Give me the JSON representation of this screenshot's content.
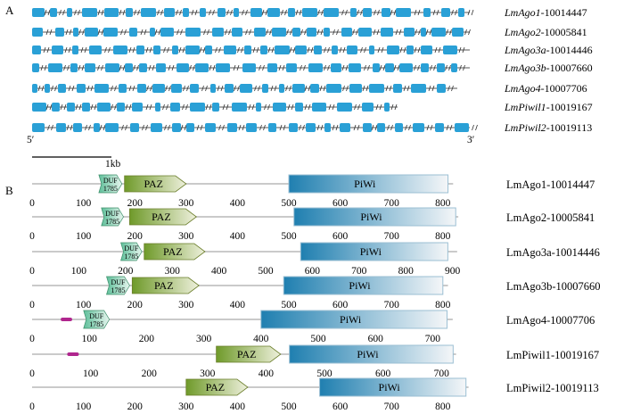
{
  "panel_a": {
    "letter": "A",
    "five_prime": "5′",
    "three_prime": "3′",
    "scale_label": "1kb",
    "exon_color": "#2aa0d6",
    "genes": [
      {
        "label_italic": "LmAgo1",
        "label_rest": "-10014447"
      },
      {
        "label_italic": "LmAgo2",
        "label_rest": "-10005841"
      },
      {
        "label_italic": "LmAgo3a",
        "label_rest": "-10014446"
      },
      {
        "label_italic": "LmAgo3b",
        "label_rest": "-10007660"
      },
      {
        "label_italic": "LmAgo4",
        "label_rest": "-10007706"
      },
      {
        "label_italic": "LmPiwil1",
        "label_rest": "-10019167"
      },
      {
        "label_italic": "LmPiwil2",
        "label_rest": "-10019113"
      }
    ]
  },
  "panel_b": {
    "letter": "B",
    "colors": {
      "duf": "#5fbf9a",
      "paz": "#6f9a2a",
      "piwi": "#1f7fb0",
      "backbone": "#b8b8b8",
      "magenta": "#b0268e"
    },
    "domain_names": {
      "duf": "DUF 1785",
      "paz": "PAZ",
      "piwi": "PiWi"
    },
    "proteins": [
      {
        "name": "LmAgo1-10014447",
        "length": 820,
        "duf": [
          130,
          175
        ],
        "paz": [
          180,
          300
        ],
        "piwi": [
          500,
          810
        ],
        "ticks": [
          "0",
          "100",
          "200",
          "300",
          "400",
          "500",
          "600",
          "700",
          "800"
        ]
      },
      {
        "name": "LmAgo2-10005841",
        "length": 830,
        "duf": [
          135,
          178
        ],
        "paz": [
          190,
          320
        ],
        "piwi": [
          510,
          825
        ],
        "ticks": [
          "0",
          "100",
          "200",
          "300",
          "400",
          "500",
          "600",
          "700",
          "800"
        ]
      },
      {
        "name": "LmAgo3a-10014446",
        "length": 910,
        "duf": [
          190,
          235
        ],
        "paz": [
          240,
          370
        ],
        "piwi": [
          575,
          890
        ],
        "ticks": [
          "0",
          "100",
          "200",
          "300",
          "400",
          "500",
          "600",
          "700",
          "800",
          "900"
        ]
      },
      {
        "name": "LmAgo3b-10007660",
        "length": 810,
        "duf": [
          145,
          190
        ],
        "paz": [
          195,
          325
        ],
        "piwi": [
          490,
          800
        ],
        "ticks": [
          "0",
          "100",
          "200",
          "300",
          "400",
          "500",
          "600",
          "700",
          "800"
        ]
      },
      {
        "name": "LmAgo4-10007706",
        "length": 735,
        "magenta": [
          50,
          70
        ],
        "duf": [
          90,
          135
        ],
        "piwi": [
          400,
          725
        ],
        "ticks": [
          "0",
          "100",
          "200",
          "300",
          "400",
          "500",
          "600",
          "700"
        ]
      },
      {
        "name": "LmPiwil1-10019167",
        "length": 725,
        "magenta": [
          60,
          80
        ],
        "paz": [
          315,
          425
        ],
        "piwi": [
          440,
          720
        ],
        "ticks": [
          "0",
          "100",
          "200",
          "300",
          "400",
          "500",
          "600",
          "700"
        ]
      },
      {
        "name": "LmPiwil2-10019113",
        "length": 850,
        "paz": [
          300,
          420
        ],
        "piwi": [
          560,
          845
        ],
        "ticks": [
          "0",
          "100",
          "200",
          "300",
          "400",
          "500",
          "600",
          "700",
          "800"
        ]
      }
    ]
  }
}
